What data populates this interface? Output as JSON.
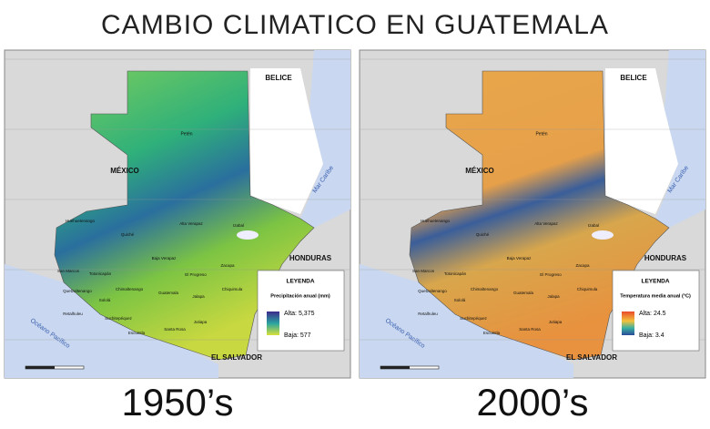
{
  "header": {
    "title": "CAMBIO CLIMATICO EN GUATEMALA"
  },
  "maps": [
    {
      "caption": "1950’s",
      "labels": {
        "belize": "BELICE",
        "mexico": "MÉXICO",
        "honduras": "HONDURAS",
        "el_salvador": "EL SALVADOR",
        "caribbean": "Mar Caribe",
        "pacific": "Océano Pacífico",
        "peten": "Petén"
      },
      "legend": {
        "title": "LEYENDA",
        "subtitle": "Precipitación anual (mm)",
        "high": "Alta: 5,375",
        "low": "Baja: 577"
      },
      "departments": [
        "Huehuetenango",
        "Quiché",
        "Alta Verapaz",
        "Izabal",
        "Baja Verapaz",
        "El Progreso",
        "Zacapa",
        "San Marcos",
        "Totonicapán",
        "Quetzaltenango",
        "Sololá",
        "Chimaltenango",
        "Guatemala",
        "Jalapa",
        "Chiquimula",
        "Retalhuleu",
        "Suchitepéquez",
        "Escuintla",
        "Santa Rosa",
        "Jutiapa"
      ]
    },
    {
      "caption": "2000’s",
      "labels": {
        "belize": "BELICE",
        "mexico": "MÉXICO",
        "honduras": "HONDURAS",
        "el_salvador": "EL SALVADOR",
        "caribbean": "Mar Caribe",
        "pacific": "Océano Pacífico",
        "peten": "Petén"
      },
      "legend": {
        "title": "LEYENDA",
        "subtitle": "Temperatura media anual (°C)",
        "high": "Alta: 24.5",
        "low": "Baja: 3.4"
      },
      "departments": [
        "Huehuetenango",
        "Quiché",
        "Alta Verapaz",
        "Izabal",
        "Baja Verapaz",
        "El Progreso",
        "Zacapa",
        "San Marcos",
        "Totonicapán",
        "Quetzaltenango",
        "Sololá",
        "Chimaltenango",
        "Guatemala",
        "Jalapa",
        "Chiquimula",
        "Retalhuleu",
        "Suchitepéquez",
        "Escuintla",
        "Santa Rosa",
        "Jutiapa"
      ]
    }
  ]
}
